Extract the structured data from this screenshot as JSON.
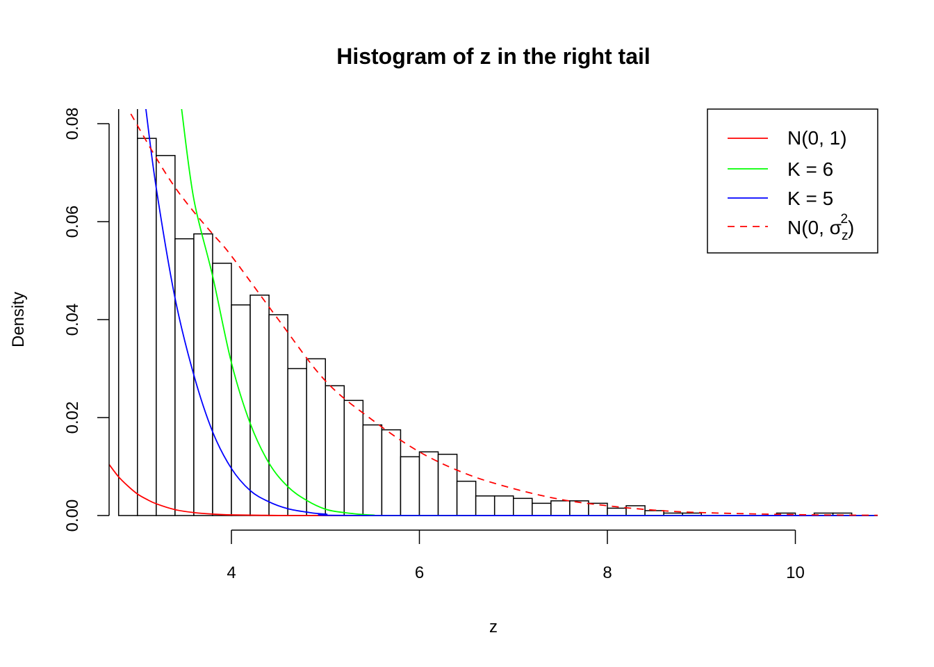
{
  "chart_data": {
    "type": "bar",
    "title": "Histogram of z in the right tail",
    "xlabel": "z",
    "ylabel": "Density",
    "xlim": [
      2.7,
      10.88
    ],
    "ylim": [
      0,
      0.083
    ],
    "x_ticks": [
      "4",
      "6",
      "8",
      "10"
    ],
    "y_ticks": [
      "0.00",
      "0.02",
      "0.04",
      "0.06",
      "0.08"
    ],
    "grid": false,
    "legend_position": "top-right",
    "histogram": {
      "bin_width": 0.2,
      "bin_starts": [
        2.8,
        3.0,
        3.2,
        3.4,
        3.6,
        3.8,
        4.0,
        4.2,
        4.4,
        4.6,
        4.8,
        5.0,
        5.2,
        5.4,
        5.6,
        5.8,
        6.0,
        6.2,
        6.4,
        6.6,
        6.8,
        7.0,
        7.2,
        7.4,
        7.6,
        7.8,
        8.0,
        8.2,
        8.4,
        8.6,
        8.8,
        9.0,
        9.2,
        9.4,
        9.6,
        9.8,
        10.0,
        10.2,
        10.4
      ],
      "density": [
        0.083,
        0.077,
        0.0735,
        0.0565,
        0.0575,
        0.0515,
        0.043,
        0.045,
        0.041,
        0.03,
        0.032,
        0.0265,
        0.0235,
        0.0185,
        0.0175,
        0.012,
        0.013,
        0.0125,
        0.007,
        0.004,
        0.004,
        0.0035,
        0.0025,
        0.003,
        0.003,
        0.0025,
        0.0015,
        0.002,
        0.001,
        0.0005,
        0.0005,
        0,
        0,
        0,
        0,
        0.0005,
        0,
        0.0005,
        0.0005
      ]
    },
    "series": [
      {
        "name": "N(0, 1)",
        "color": "#ff0000",
        "style": "solid",
        "x": [
          2.7,
          2.8,
          2.9,
          3.0,
          3.1,
          3.2,
          3.4,
          3.6,
          3.8,
          4.0,
          4.5,
          5.0,
          10.88
        ],
        "y": [
          0.0104,
          0.0079,
          0.006,
          0.0044,
          0.0033,
          0.0024,
          0.0012,
          0.0006,
          0.0003,
          0.00013,
          2e-05,
          0,
          0
        ]
      },
      {
        "name": "K = 6",
        "color": "#00ff00",
        "style": "solid",
        "x": [
          3.47,
          3.6,
          3.8,
          4.0,
          4.2,
          4.4,
          4.6,
          4.8,
          5.0,
          5.2,
          5.5,
          6.0,
          10.88
        ],
        "y": [
          0.083,
          0.0646,
          0.0489,
          0.0312,
          0.0188,
          0.0107,
          0.0059,
          0.0031,
          0.0013,
          0.0006,
          0.0001,
          0,
          0
        ]
      },
      {
        "name": "K = 5",
        "color": "#0000ff",
        "style": "solid",
        "x": [
          3.09,
          3.2,
          3.4,
          3.6,
          3.8,
          4.0,
          4.2,
          4.4,
          4.6,
          4.8,
          5.0,
          5.5,
          10.88
        ],
        "y": [
          0.083,
          0.0669,
          0.0444,
          0.0287,
          0.0171,
          0.0096,
          0.0051,
          0.0028,
          0.0014,
          0.0007,
          0.0003,
          0,
          0
        ]
      },
      {
        "name": "N(0, σz²)",
        "color": "#ff0000",
        "style": "dashed",
        "x": [
          2.93,
          3.2,
          3.4,
          3.6,
          3.8,
          4.0,
          4.5,
          5.0,
          5.5,
          6.0,
          6.5,
          7.0,
          7.5,
          8.0,
          8.5,
          9.0,
          10.0,
          10.88
        ],
        "y": [
          0.082,
          0.073,
          0.067,
          0.062,
          0.0575,
          0.053,
          0.04,
          0.0275,
          0.0195,
          0.013,
          0.0085,
          0.0055,
          0.0033,
          0.002,
          0.0011,
          0.0006,
          0.00018,
          5e-05
        ]
      }
    ],
    "legend": {
      "entries": [
        {
          "label": "N(0, 1)",
          "color": "#ff0000",
          "style": "solid"
        },
        {
          "label": "K = 6",
          "color": "#00ff00",
          "style": "solid"
        },
        {
          "label": "K = 5",
          "color": "#0000ff",
          "style": "solid"
        },
        {
          "label_main": "N(0, σ",
          "label_sub": "z",
          "label_sup": "2",
          "label_end": ")",
          "color": "#ff0000",
          "style": "dashed"
        }
      ]
    }
  }
}
